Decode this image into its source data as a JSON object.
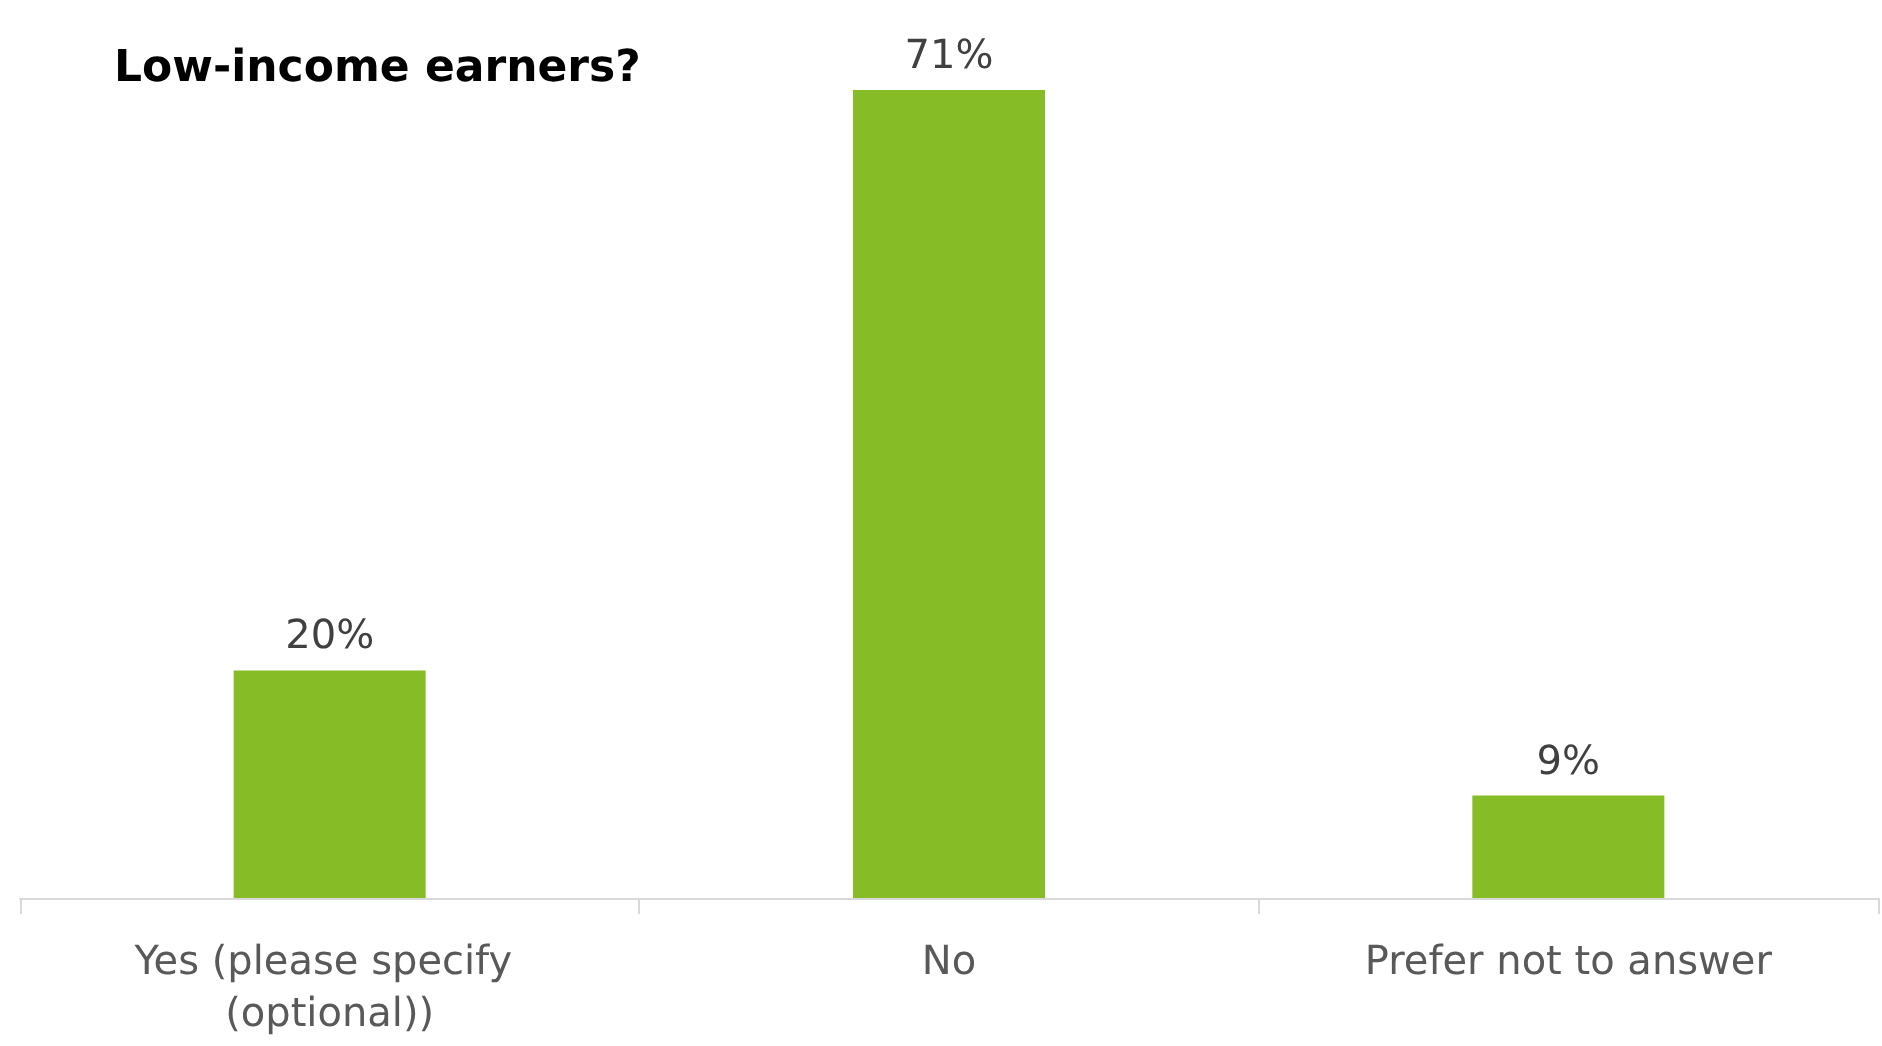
{
  "chart_data": {
    "type": "bar",
    "title": "Low-income earners?",
    "categories": [
      "Yes (please specify (optional))",
      "No",
      "Prefer not to answer"
    ],
    "values": [
      20,
      71,
      9
    ],
    "color": "#86bc25",
    "value_labels": [
      "20%",
      "71%",
      "9%"
    ]
  }
}
